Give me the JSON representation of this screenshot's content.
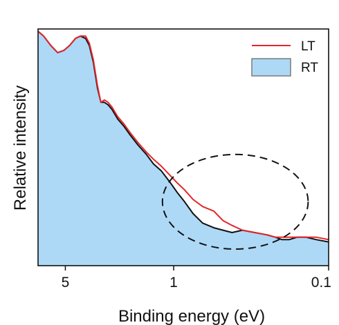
{
  "chart_data": {
    "type": "area",
    "xlabel": "Binding energy (eV)",
    "ylabel": "Relative intensity",
    "x_scale": "log",
    "x_reversed": true,
    "xlim": [
      7.5,
      0.1
    ],
    "ylim": [
      0,
      1
    ],
    "x_ticks": [
      {
        "value": 5,
        "label": "5"
      },
      {
        "value": 1,
        "label": "1"
      },
      {
        "value": 0.1,
        "label": "0.1"
      }
    ],
    "grid": false,
    "legend": {
      "position": "top-right"
    },
    "series": [
      {
        "name": "LT",
        "render": "line",
        "color": "#e3262a",
        "x": [
          7.5,
          6.9,
          6.2,
          5.6,
          5.1,
          4.7,
          4.3,
          4.0,
          3.7,
          3.5,
          3.3,
          3.1,
          2.95,
          2.8,
          2.65,
          2.5,
          2.3,
          2.1,
          1.9,
          1.7,
          1.5,
          1.35,
          1.2,
          1.05,
          0.95,
          0.85,
          0.75,
          0.65,
          0.55,
          0.48,
          0.42,
          0.36,
          0.3,
          0.25,
          0.22,
          0.2,
          0.18,
          0.16,
          0.14,
          0.12,
          0.1
        ],
        "y": [
          0.99,
          0.97,
          0.93,
          0.9,
          0.91,
          0.93,
          0.96,
          0.97,
          0.97,
          0.94,
          0.87,
          0.76,
          0.69,
          0.7,
          0.69,
          0.67,
          0.63,
          0.6,
          0.56,
          0.52,
          0.48,
          0.45,
          0.42,
          0.38,
          0.35,
          0.32,
          0.28,
          0.25,
          0.23,
          0.19,
          0.17,
          0.15,
          0.14,
          0.13,
          0.12,
          0.12,
          0.12,
          0.12,
          0.12,
          0.12,
          0.11
        ]
      },
      {
        "name": "RT",
        "render": "area",
        "color": "#add9f7",
        "edge_color": "#111111",
        "x": [
          7.5,
          6.9,
          6.2,
          5.6,
          5.1,
          4.7,
          4.3,
          4.0,
          3.7,
          3.5,
          3.3,
          3.1,
          2.95,
          2.8,
          2.65,
          2.5,
          2.3,
          2.1,
          1.9,
          1.7,
          1.5,
          1.35,
          1.2,
          1.05,
          0.95,
          0.85,
          0.75,
          0.65,
          0.55,
          0.48,
          0.42,
          0.36,
          0.3,
          0.25,
          0.22,
          0.2,
          0.18,
          0.16,
          0.14,
          0.12,
          0.1
        ],
        "y": [
          0.99,
          0.97,
          0.93,
          0.9,
          0.91,
          0.93,
          0.96,
          0.97,
          0.96,
          0.93,
          0.86,
          0.75,
          0.69,
          0.69,
          0.68,
          0.66,
          0.62,
          0.59,
          0.55,
          0.51,
          0.47,
          0.43,
          0.4,
          0.35,
          0.31,
          0.27,
          0.22,
          0.18,
          0.16,
          0.15,
          0.14,
          0.15,
          0.14,
          0.13,
          0.12,
          0.11,
          0.11,
          0.12,
          0.12,
          0.11,
          0.1
        ]
      }
    ],
    "annotations": [
      {
        "type": "dashed-ellipse",
        "cx": 0.4,
        "cy": 0.27,
        "rx_dex": 0.47,
        "ry": 0.2,
        "color": "#111111"
      }
    ]
  }
}
